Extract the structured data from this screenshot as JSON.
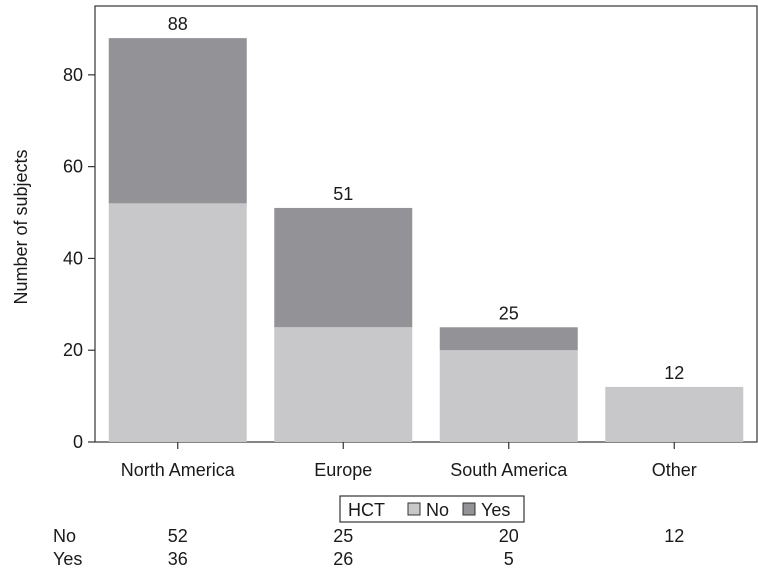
{
  "chart_data": {
    "type": "bar",
    "stacked": true,
    "categories": [
      "North America",
      "Europe",
      "South America",
      "Other"
    ],
    "series": [
      {
        "name": "No",
        "values": [
          52,
          25,
          20,
          12
        ],
        "color": "#c8c8ca"
      },
      {
        "name": "Yes",
        "values": [
          36,
          26,
          5,
          0
        ],
        "color": "#939397"
      }
    ],
    "totals": [
      88,
      51,
      25,
      12
    ],
    "ylabel": "Number of subjects",
    "xlabel": "",
    "ylim": [
      0,
      95
    ],
    "yticks": [
      0,
      20,
      40,
      60,
      80
    ],
    "grid": false,
    "legend": {
      "title": "HCT",
      "placement": "bottom-center",
      "entries": [
        "No",
        "Yes"
      ]
    },
    "table": {
      "rows": [
        {
          "label": "No",
          "values": [
            "52",
            "25",
            "20",
            "12"
          ]
        },
        {
          "label": "Yes",
          "values": [
            "36",
            "26",
            "5",
            ""
          ]
        }
      ]
    }
  }
}
